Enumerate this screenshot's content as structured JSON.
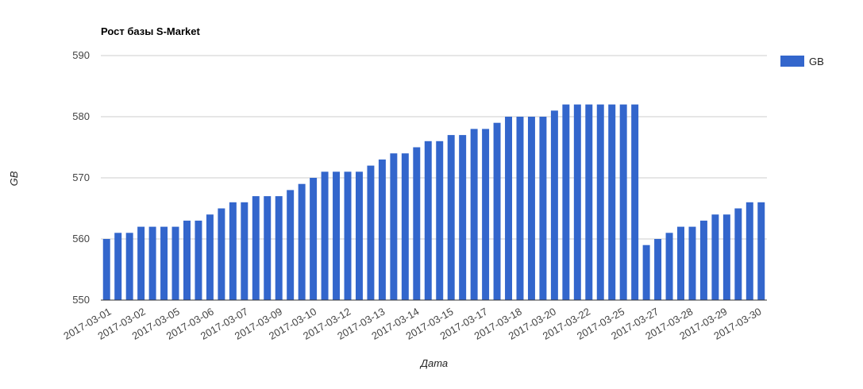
{
  "chart_data": {
    "type": "bar",
    "title": "Рост базы S-Market",
    "xlabel": "Дата",
    "ylabel": "GB",
    "ylim": [
      550,
      590
    ],
    "yticks": [
      550,
      560,
      570,
      580,
      590
    ],
    "grid": true,
    "legend_position": "right",
    "bar_color": "#3366cc",
    "series": [
      {
        "name": "GB",
        "values": [
          560,
          561,
          561,
          562,
          562,
          562,
          562,
          563,
          563,
          564,
          565,
          566,
          566,
          567,
          567,
          567,
          568,
          569,
          570,
          571,
          571,
          571,
          571,
          572,
          573,
          574,
          574,
          575,
          576,
          576,
          577,
          577,
          578,
          578,
          579,
          580,
          580,
          580,
          580,
          581,
          582,
          582,
          582,
          582,
          582,
          582,
          582,
          559,
          560,
          561,
          562,
          562,
          563,
          564,
          564,
          565,
          566,
          566
        ]
      }
    ],
    "x_tick_labels": [
      "2017-03-01",
      "2017-03-02",
      "2017-03-05",
      "2017-03-06",
      "2017-03-07",
      "2017-03-09",
      "2017-03-10",
      "2017-03-12",
      "2017-03-13",
      "2017-03-14",
      "2017-03-15",
      "2017-03-17",
      "2017-03-18",
      "2017-03-20",
      "2017-03-22",
      "2017-03-25",
      "2017-03-27",
      "2017-03-28",
      "2017-03-29",
      "2017-03-30"
    ]
  }
}
